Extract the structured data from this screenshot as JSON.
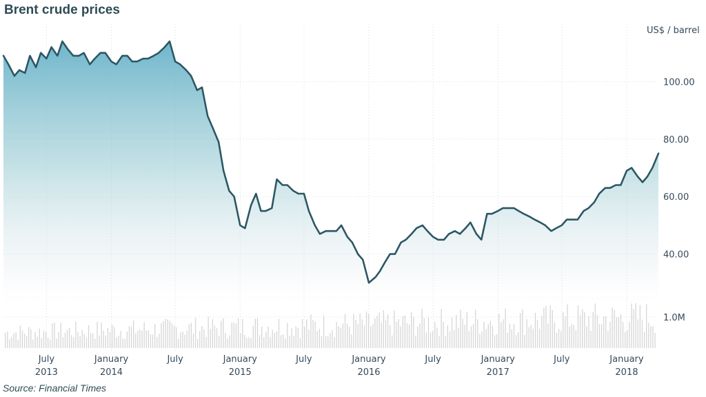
{
  "chart_data": {
    "type": "line",
    "title": "Brent crude prices",
    "ylabel": "US$ / barrel",
    "source": "Source: Financial Times",
    "xlim": [
      "2013-03-01",
      "2018-04-01"
    ],
    "ylim": [
      20,
      120
    ],
    "y_ticks": [
      {
        "value": 100,
        "label": "100.00"
      },
      {
        "value": 80,
        "label": "80.00"
      },
      {
        "value": 60,
        "label": "60.00"
      },
      {
        "value": 40,
        "label": "40.00"
      }
    ],
    "x_ticks": [
      {
        "date": "2013-07-01",
        "label": "July",
        "year": "2013"
      },
      {
        "date": "2014-01-01",
        "label": "January",
        "year": "2014"
      },
      {
        "date": "2014-07-01",
        "label": "July",
        "year": ""
      },
      {
        "date": "2015-01-01",
        "label": "January",
        "year": "2015"
      },
      {
        "date": "2015-07-01",
        "label": "July",
        "year": ""
      },
      {
        "date": "2016-01-01",
        "label": "January",
        "year": "2016"
      },
      {
        "date": "2016-07-01",
        "label": "July",
        "year": ""
      },
      {
        "date": "2017-01-01",
        "label": "January",
        "year": "2017"
      },
      {
        "date": "2017-07-01",
        "label": "July",
        "year": ""
      },
      {
        "date": "2018-01-01",
        "label": "January",
        "year": "2018"
      }
    ],
    "volume_label": "1.0M",
    "colors": {
      "line": "#2c5764",
      "area_top": "#5faec6",
      "grid": "#d3dde5",
      "volume": "#d6d6d6"
    },
    "grid": true,
    "series": [
      {
        "x": [
          "2013-03-01",
          "2013-03-15",
          "2013-04-01",
          "2013-04-15",
          "2013-05-01",
          "2013-05-15",
          "2013-06-01",
          "2013-06-15",
          "2013-07-01",
          "2013-07-15",
          "2013-08-01",
          "2013-08-15",
          "2013-09-01",
          "2013-09-15",
          "2013-10-01",
          "2013-10-15",
          "2013-11-01",
          "2013-11-15",
          "2013-12-01",
          "2013-12-15",
          "2014-01-01",
          "2014-01-15",
          "2014-02-01",
          "2014-02-15",
          "2014-03-01",
          "2014-03-15",
          "2014-04-01",
          "2014-04-15",
          "2014-05-01",
          "2014-05-15",
          "2014-06-01",
          "2014-06-15",
          "2014-07-01",
          "2014-07-15",
          "2014-08-01",
          "2014-08-15",
          "2014-09-01",
          "2014-09-15",
          "2014-10-01",
          "2014-10-15",
          "2014-11-01",
          "2014-11-15",
          "2014-12-01",
          "2014-12-15",
          "2015-01-01",
          "2015-01-15",
          "2015-02-01",
          "2015-02-15",
          "2015-03-01",
          "2015-03-15",
          "2015-04-01",
          "2015-04-15",
          "2015-05-01",
          "2015-05-15",
          "2015-06-01",
          "2015-06-15",
          "2015-07-01",
          "2015-07-15",
          "2015-08-01",
          "2015-08-15",
          "2015-09-01",
          "2015-09-15",
          "2015-10-01",
          "2015-10-15",
          "2015-11-01",
          "2015-11-15",
          "2015-12-01",
          "2015-12-15",
          "2016-01-01",
          "2016-01-20",
          "2016-02-01",
          "2016-02-15",
          "2016-03-01",
          "2016-03-15",
          "2016-04-01",
          "2016-04-15",
          "2016-05-01",
          "2016-05-15",
          "2016-06-01",
          "2016-06-15",
          "2016-07-01",
          "2016-07-15",
          "2016-08-01",
          "2016-08-15",
          "2016-09-01",
          "2016-09-15",
          "2016-10-01",
          "2016-10-15",
          "2016-11-01",
          "2016-11-15",
          "2016-12-01",
          "2016-12-15",
          "2017-01-01",
          "2017-01-15",
          "2017-02-01",
          "2017-02-15",
          "2017-03-01",
          "2017-03-15",
          "2017-04-01",
          "2017-04-15",
          "2017-05-01",
          "2017-05-15",
          "2017-06-01",
          "2017-06-15",
          "2017-07-01",
          "2017-07-15",
          "2017-08-01",
          "2017-08-15",
          "2017-09-01",
          "2017-09-15",
          "2017-10-01",
          "2017-10-15",
          "2017-11-01",
          "2017-11-15",
          "2017-12-01",
          "2017-12-15",
          "2018-01-01",
          "2018-01-15",
          "2018-02-01",
          "2018-02-15",
          "2018-03-01",
          "2018-03-15",
          "2018-04-01"
        ],
        "y": [
          109,
          106,
          102,
          104,
          103,
          109,
          105,
          110,
          108,
          112,
          109,
          114,
          111,
          109,
          109,
          110,
          106,
          108,
          110,
          110,
          107,
          106,
          109,
          109,
          107,
          107,
          108,
          108,
          109,
          110,
          112,
          114,
          107,
          106,
          104,
          102,
          97,
          98,
          88,
          84,
          79,
          69,
          62,
          60,
          50,
          49,
          57,
          61,
          55,
          55,
          56,
          66,
          64,
          64,
          62,
          61,
          61,
          55,
          50,
          47,
          48,
          48,
          48,
          50,
          46,
          44,
          40,
          38,
          30,
          32,
          34,
          37,
          40,
          40,
          44,
          45,
          47,
          49,
          50,
          48,
          46,
          45,
          45,
          47,
          48,
          47,
          49,
          51,
          47,
          45,
          54,
          54,
          55,
          56,
          56,
          56,
          55,
          54,
          53,
          52,
          51,
          50,
          48,
          49,
          50,
          52,
          52,
          52,
          55,
          56,
          58,
          61,
          63,
          63,
          64,
          64,
          69,
          70,
          67,
          65,
          67,
          70,
          75
        ]
      }
    ]
  }
}
